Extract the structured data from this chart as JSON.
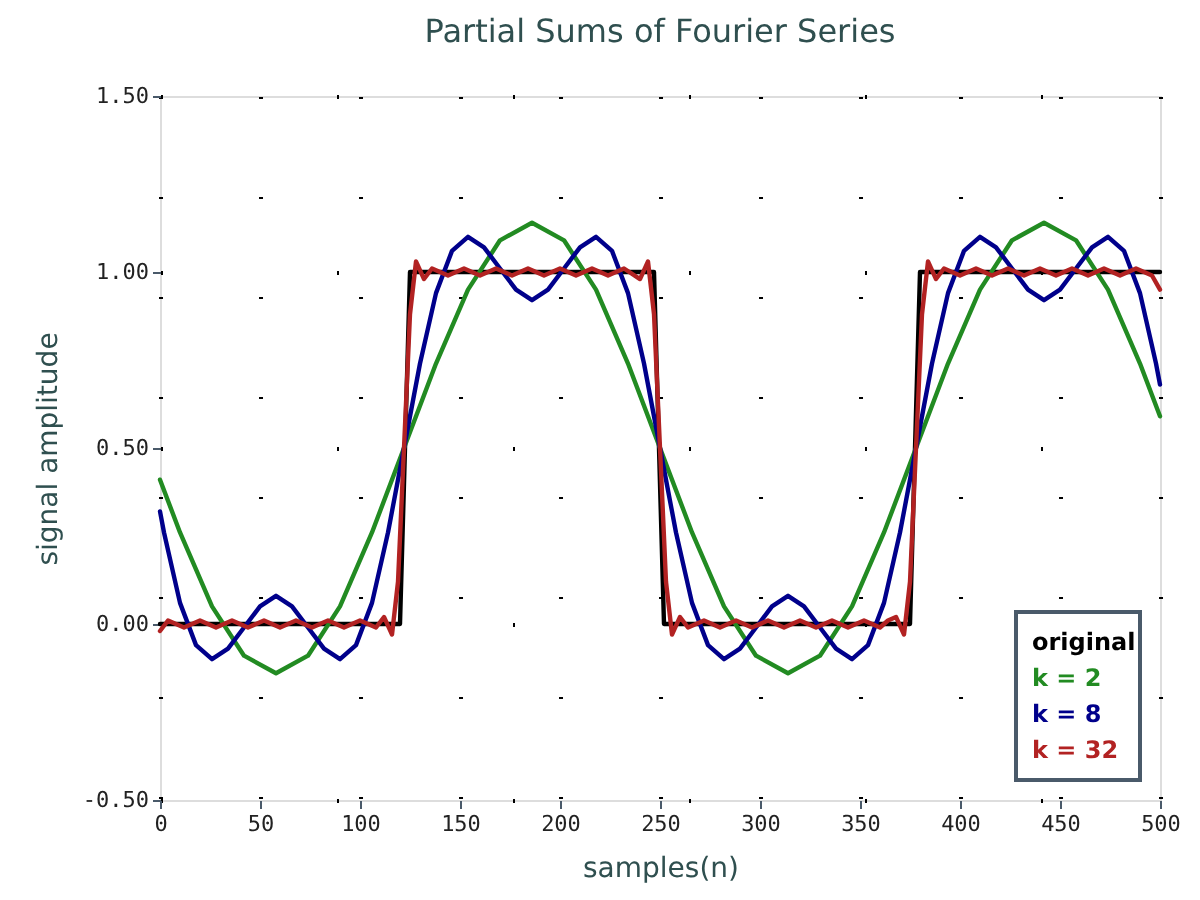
{
  "chart_data": {
    "type": "line",
    "title": "Partial Sums of Fourier Series",
    "xlabel": "samples(n)",
    "ylabel": "signal amplitude",
    "xlim": [
      0,
      500
    ],
    "xticks": [
      0,
      50,
      100,
      150,
      200,
      250,
      300,
      350,
      400,
      450,
      500
    ],
    "ylim": [
      -0.5,
      1.5
    ],
    "yticks": [
      {
        "value": -0.5,
        "label": "-0.50"
      },
      {
        "value": 0,
        "label": "0.00"
      },
      {
        "value": 0.5,
        "label": "0.50"
      },
      {
        "value": 1,
        "label": "1.00"
      },
      {
        "value": 1.5,
        "label": "1.50"
      }
    ],
    "grid": true,
    "legend": "bottom right",
    "marker": "none",
    "line_style": "solid",
    "series": [
      {
        "name": "original",
        "color": "#000000",
        "x": [
          0,
          120,
          125,
          247,
          252,
          375,
          380,
          500
        ],
        "values": [
          0,
          0,
          1,
          1,
          0,
          0,
          1,
          1
        ]
      },
      {
        "name": "k = 2",
        "color": "#228b22",
        "x": [
          0,
          10,
          26,
          42,
          58,
          74,
          90,
          106,
          122,
          138,
          154,
          170,
          186,
          202,
          218,
          234,
          250,
          266,
          282,
          298,
          314,
          330,
          346,
          362,
          378,
          394,
          410,
          426,
          442,
          458,
          474,
          490,
          500
        ],
        "values": [
          0.41,
          0.26,
          0.05,
          -0.09,
          -0.14,
          -0.09,
          0.05,
          0.26,
          0.5,
          0.74,
          0.95,
          1.09,
          1.14,
          1.09,
          0.95,
          0.74,
          0.5,
          0.26,
          0.05,
          -0.09,
          -0.14,
          -0.09,
          0.05,
          0.26,
          0.5,
          0.74,
          0.95,
          1.09,
          1.14,
          1.09,
          0.95,
          0.74,
          0.59
        ]
      },
      {
        "name": "k = 8",
        "color": "#00008b",
        "x": [
          0,
          2,
          10,
          18,
          26,
          34,
          42,
          50,
          58,
          66,
          74,
          82,
          90,
          98,
          106,
          114,
          122,
          130,
          138,
          146,
          154,
          162,
          170,
          178,
          186,
          194,
          202,
          210,
          218,
          226,
          234,
          242,
          250,
          258,
          266,
          274,
          282,
          290,
          298,
          306,
          314,
          322,
          330,
          338,
          346,
          354,
          362,
          370,
          378,
          386,
          394,
          402,
          410,
          418,
          426,
          434,
          442,
          450,
          458,
          466,
          474,
          482,
          490,
          498,
          500
        ],
        "values": [
          0.32,
          0.26,
          0.06,
          -0.06,
          -0.1,
          -0.07,
          -0.01,
          0.05,
          0.08,
          0.05,
          -0.01,
          -0.07,
          -0.1,
          -0.06,
          0.06,
          0.26,
          0.5,
          0.74,
          0.94,
          1.06,
          1.1,
          1.07,
          1.01,
          0.95,
          0.92,
          0.95,
          1.01,
          1.07,
          1.1,
          1.06,
          0.94,
          0.74,
          0.5,
          0.26,
          0.06,
          -0.06,
          -0.1,
          -0.07,
          -0.01,
          0.05,
          0.08,
          0.05,
          -0.01,
          -0.07,
          -0.1,
          -0.06,
          0.06,
          0.26,
          0.5,
          0.74,
          0.94,
          1.06,
          1.1,
          1.07,
          1.01,
          0.95,
          0.92,
          0.95,
          1.01,
          1.07,
          1.1,
          1.06,
          0.94,
          0.74,
          0.68
        ]
      },
      {
        "name": "k = 32",
        "color": "#b22222",
        "x": [
          0,
          4,
          12,
          20,
          28,
          36,
          44,
          52,
          60,
          68,
          76,
          84,
          92,
          100,
          108,
          112,
          116,
          119,
          122,
          125,
          128,
          132,
          136,
          144,
          152,
          160,
          168,
          176,
          184,
          192,
          200,
          208,
          216,
          224,
          232,
          240,
          244,
          247,
          250,
          253,
          256,
          260,
          264,
          272,
          280,
          288,
          296,
          304,
          312,
          320,
          328,
          336,
          344,
          352,
          360,
          364,
          368,
          372,
          375,
          378,
          381,
          384,
          388,
          392,
          400,
          408,
          416,
          424,
          432,
          440,
          448,
          456,
          464,
          472,
          480,
          488,
          496,
          500
        ],
        "values": [
          -0.02,
          0.01,
          -0.01,
          0.01,
          -0.01,
          0.01,
          -0.01,
          0.01,
          -0.01,
          0.01,
          -0.01,
          0.01,
          -0.01,
          0.01,
          -0.01,
          0.02,
          -0.03,
          0.12,
          0.5,
          0.88,
          1.03,
          0.98,
          1.01,
          0.99,
          1.01,
          0.99,
          1.01,
          0.99,
          1.01,
          0.99,
          1.01,
          0.99,
          1.01,
          0.99,
          1.01,
          0.98,
          1.03,
          0.88,
          0.5,
          0.12,
          -0.03,
          0.02,
          -0.01,
          0.01,
          -0.01,
          0.01,
          -0.01,
          0.01,
          -0.01,
          0.01,
          -0.01,
          0.01,
          -0.01,
          0.01,
          -0.01,
          0.01,
          0.02,
          -0.03,
          0.12,
          0.5,
          0.88,
          1.03,
          0.98,
          1.01,
          0.99,
          1.01,
          0.99,
          1.01,
          0.99,
          1.01,
          0.99,
          1.01,
          0.99,
          1.01,
          0.99,
          1.01,
          0.99,
          0.95
        ]
      }
    ]
  }
}
